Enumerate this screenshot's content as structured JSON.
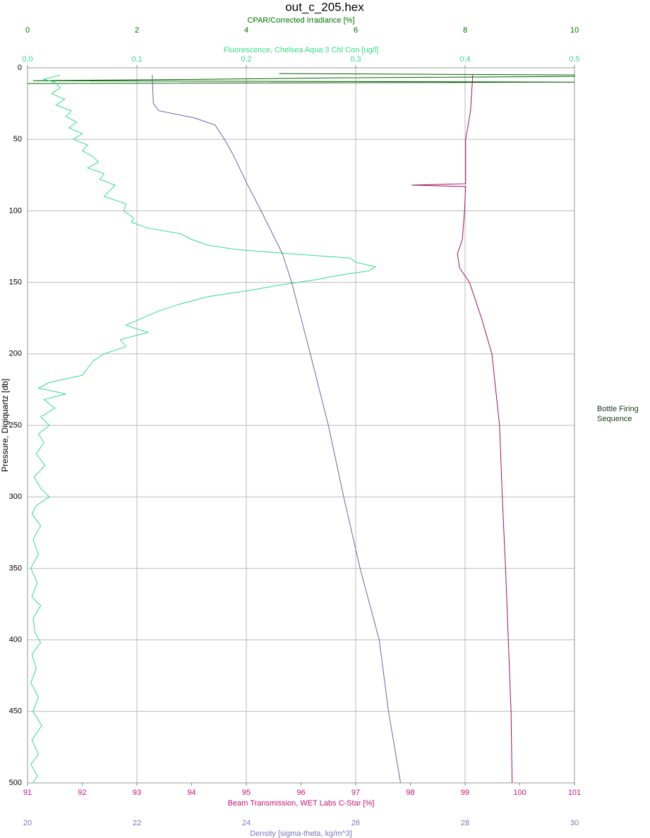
{
  "chart_data": {
    "type": "line",
    "title": "out_c_205.hex",
    "y_label": "Pressure, Digiquartz [db]",
    "ylim": [
      0,
      500
    ],
    "y_inverted": true,
    "yticks": [
      0,
      50,
      100,
      150,
      200,
      250,
      300,
      350,
      400,
      450,
      500
    ],
    "grid": true,
    "side_label": "Bottle Firing Sequence",
    "axes": [
      {
        "label": "CPAR/Corrected Irradiance [%]",
        "position": "top",
        "color": "#007000",
        "lim": [
          0,
          10
        ],
        "ticks": [
          0,
          2,
          4,
          6,
          8,
          10
        ]
      },
      {
        "label": "Fluorescence, Chelsea Aqua 3 Chl Con [ug/l]",
        "position": "top",
        "color": "#33dd88",
        "lim": [
          0,
          0.5
        ],
        "ticks": [
          {
            "value": 0,
            "label": "0,0"
          },
          {
            "value": 0.1,
            "label": "0,1"
          },
          {
            "value": 0.2,
            "label": "0,2"
          },
          {
            "value": 0.3,
            "label": "0,3"
          },
          {
            "value": 0.4,
            "label": "0,4"
          },
          {
            "value": 0.5,
            "label": "0,5"
          }
        ]
      },
      {
        "label": "Beam Transmission, WET Labs C-Star [%]",
        "position": "bottom",
        "color": "#cc1177",
        "lim": [
          91,
          101
        ],
        "ticks": [
          91,
          92,
          93,
          94,
          95,
          96,
          97,
          98,
          99,
          100,
          101
        ]
      },
      {
        "label": "Density [sigma-theta, kg/m^3]",
        "position": "bottom",
        "color": "#7777bb",
        "lim": [
          20,
          30
        ],
        "ticks": [
          20,
          22,
          24,
          26,
          28,
          30
        ]
      }
    ],
    "series": [
      {
        "axis": 0,
        "color": "#006400",
        "pressure": [
          4,
          5,
          6,
          7,
          8,
          9,
          10,
          11
        ],
        "values": [
          4.6,
          10,
          10,
          5.7,
          3.2,
          0.1,
          10,
          0
        ]
      },
      {
        "axis": 1,
        "color": "#33dd88",
        "pressure": [
          5,
          8,
          10,
          14,
          18,
          22,
          26,
          30,
          34,
          38,
          42,
          46,
          50,
          54,
          58,
          62,
          66,
          70,
          74,
          78,
          82,
          86,
          90,
          95,
          100,
          105,
          108,
          112,
          116,
          120,
          124,
          127,
          130,
          133,
          136,
          139,
          142,
          145,
          148,
          152,
          156,
          160,
          165,
          170,
          175,
          180,
          185,
          190,
          195,
          200,
          205,
          210,
          215,
          220,
          224,
          228,
          232,
          238,
          244,
          250,
          256,
          262,
          270,
          278,
          286,
          294,
          300,
          306,
          312,
          320,
          330,
          340,
          350,
          360,
          370,
          376,
          385,
          395,
          402,
          410,
          420,
          430,
          440,
          450,
          460,
          470,
          480,
          487,
          495,
          500
        ],
        "values": [
          0.03,
          0.015,
          0.025,
          0.03,
          0.022,
          0.034,
          0.026,
          0.04,
          0.035,
          0.045,
          0.038,
          0.05,
          0.042,
          0.055,
          0.05,
          0.06,
          0.065,
          0.055,
          0.07,
          0.066,
          0.08,
          0.075,
          0.07,
          0.09,
          0.088,
          0.097,
          0.095,
          0.11,
          0.14,
          0.15,
          0.165,
          0.19,
          0.24,
          0.295,
          0.3,
          0.318,
          0.312,
          0.285,
          0.265,
          0.23,
          0.2,
          0.165,
          0.14,
          0.12,
          0.105,
          0.09,
          0.11,
          0.085,
          0.09,
          0.07,
          0.06,
          0.055,
          0.05,
          0.02,
          0.01,
          0.035,
          0.015,
          0.025,
          0.012,
          0.02,
          0.01,
          0.015,
          0.008,
          0.016,
          0.006,
          0.012,
          0.02,
          0.008,
          0.004,
          0.012,
          0.005,
          0.01,
          0.003,
          0.009,
          0.004,
          0.012,
          0.005,
          0.007,
          0.012,
          0.004,
          0.008,
          0.003,
          0.01,
          0.005,
          0.013,
          0.004,
          0.01,
          0.003,
          0.009,
          0.005
        ]
      },
      {
        "axis": 2,
        "color": "#a0106a",
        "pressure": [
          5,
          30,
          50,
          80,
          81,
          82,
          83,
          100,
          120,
          130,
          140,
          150,
          175,
          200,
          250,
          300,
          350,
          400,
          450,
          500
        ],
        "values": [
          99.14,
          99.1,
          99.01,
          99.01,
          99.01,
          98.02,
          99.01,
          98.99,
          98.95,
          98.86,
          98.9,
          99.08,
          99.3,
          99.49,
          99.63,
          99.68,
          99.74,
          99.79,
          99.84,
          99.86
        ]
      },
      {
        "axis": 3,
        "color": "#6666aa",
        "pressure": [
          5,
          25,
          30,
          35,
          40,
          50,
          60,
          80,
          100,
          130,
          150,
          200,
          250,
          300,
          350,
          400,
          450,
          500
        ],
        "values": [
          22.28,
          22.3,
          22.4,
          23.05,
          23.43,
          23.6,
          23.75,
          24.0,
          24.27,
          24.66,
          24.83,
          25.17,
          25.5,
          25.78,
          26.08,
          26.43,
          26.6,
          26.82
        ]
      }
    ]
  }
}
